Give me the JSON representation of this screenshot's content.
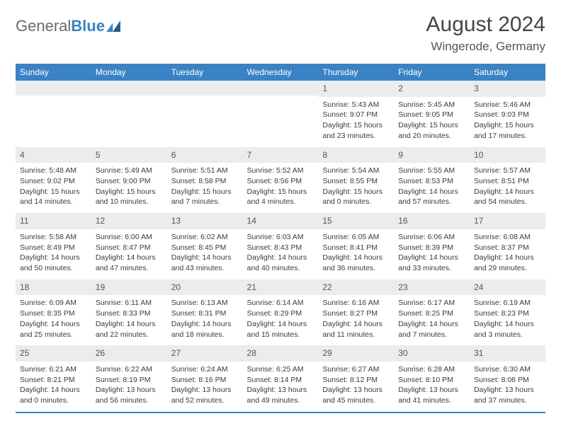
{
  "logo": {
    "word1": "General",
    "word2": "Blue"
  },
  "title": "August 2024",
  "location": "Wingerode, Germany",
  "colors": {
    "headerBar": "#3b82c4",
    "dayNumBg": "#ececec",
    "text": "#3b3b3b",
    "logoGrey": "#6a6a6a",
    "logoBlue": "#3b82c4"
  },
  "daysOfWeek": [
    "Sunday",
    "Monday",
    "Tuesday",
    "Wednesday",
    "Thursday",
    "Friday",
    "Saturday"
  ],
  "startOffset": 4,
  "days": [
    {
      "n": 1,
      "sunrise": "5:43 AM",
      "sunset": "9:07 PM",
      "daylight": "15 hours and 23 minutes."
    },
    {
      "n": 2,
      "sunrise": "5:45 AM",
      "sunset": "9:05 PM",
      "daylight": "15 hours and 20 minutes."
    },
    {
      "n": 3,
      "sunrise": "5:46 AM",
      "sunset": "9:03 PM",
      "daylight": "15 hours and 17 minutes."
    },
    {
      "n": 4,
      "sunrise": "5:48 AM",
      "sunset": "9:02 PM",
      "daylight": "15 hours and 14 minutes."
    },
    {
      "n": 5,
      "sunrise": "5:49 AM",
      "sunset": "9:00 PM",
      "daylight": "15 hours and 10 minutes."
    },
    {
      "n": 6,
      "sunrise": "5:51 AM",
      "sunset": "8:58 PM",
      "daylight": "15 hours and 7 minutes."
    },
    {
      "n": 7,
      "sunrise": "5:52 AM",
      "sunset": "8:56 PM",
      "daylight": "15 hours and 4 minutes."
    },
    {
      "n": 8,
      "sunrise": "5:54 AM",
      "sunset": "8:55 PM",
      "daylight": "15 hours and 0 minutes."
    },
    {
      "n": 9,
      "sunrise": "5:55 AM",
      "sunset": "8:53 PM",
      "daylight": "14 hours and 57 minutes."
    },
    {
      "n": 10,
      "sunrise": "5:57 AM",
      "sunset": "8:51 PM",
      "daylight": "14 hours and 54 minutes."
    },
    {
      "n": 11,
      "sunrise": "5:58 AM",
      "sunset": "8:49 PM",
      "daylight": "14 hours and 50 minutes."
    },
    {
      "n": 12,
      "sunrise": "6:00 AM",
      "sunset": "8:47 PM",
      "daylight": "14 hours and 47 minutes."
    },
    {
      "n": 13,
      "sunrise": "6:02 AM",
      "sunset": "8:45 PM",
      "daylight": "14 hours and 43 minutes."
    },
    {
      "n": 14,
      "sunrise": "6:03 AM",
      "sunset": "8:43 PM",
      "daylight": "14 hours and 40 minutes."
    },
    {
      "n": 15,
      "sunrise": "6:05 AM",
      "sunset": "8:41 PM",
      "daylight": "14 hours and 36 minutes."
    },
    {
      "n": 16,
      "sunrise": "6:06 AM",
      "sunset": "8:39 PM",
      "daylight": "14 hours and 33 minutes."
    },
    {
      "n": 17,
      "sunrise": "6:08 AM",
      "sunset": "8:37 PM",
      "daylight": "14 hours and 29 minutes."
    },
    {
      "n": 18,
      "sunrise": "6:09 AM",
      "sunset": "8:35 PM",
      "daylight": "14 hours and 25 minutes."
    },
    {
      "n": 19,
      "sunrise": "6:11 AM",
      "sunset": "8:33 PM",
      "daylight": "14 hours and 22 minutes."
    },
    {
      "n": 20,
      "sunrise": "6:13 AM",
      "sunset": "8:31 PM",
      "daylight": "14 hours and 18 minutes."
    },
    {
      "n": 21,
      "sunrise": "6:14 AM",
      "sunset": "8:29 PM",
      "daylight": "14 hours and 15 minutes."
    },
    {
      "n": 22,
      "sunrise": "6:16 AM",
      "sunset": "8:27 PM",
      "daylight": "14 hours and 11 minutes."
    },
    {
      "n": 23,
      "sunrise": "6:17 AM",
      "sunset": "8:25 PM",
      "daylight": "14 hours and 7 minutes."
    },
    {
      "n": 24,
      "sunrise": "6:19 AM",
      "sunset": "8:23 PM",
      "daylight": "14 hours and 3 minutes."
    },
    {
      "n": 25,
      "sunrise": "6:21 AM",
      "sunset": "8:21 PM",
      "daylight": "14 hours and 0 minutes."
    },
    {
      "n": 26,
      "sunrise": "6:22 AM",
      "sunset": "8:19 PM",
      "daylight": "13 hours and 56 minutes."
    },
    {
      "n": 27,
      "sunrise": "6:24 AM",
      "sunset": "8:16 PM",
      "daylight": "13 hours and 52 minutes."
    },
    {
      "n": 28,
      "sunrise": "6:25 AM",
      "sunset": "8:14 PM",
      "daylight": "13 hours and 49 minutes."
    },
    {
      "n": 29,
      "sunrise": "6:27 AM",
      "sunset": "8:12 PM",
      "daylight": "13 hours and 45 minutes."
    },
    {
      "n": 30,
      "sunrise": "6:28 AM",
      "sunset": "8:10 PM",
      "daylight": "13 hours and 41 minutes."
    },
    {
      "n": 31,
      "sunrise": "6:30 AM",
      "sunset": "8:08 PM",
      "daylight": "13 hours and 37 minutes."
    }
  ],
  "labels": {
    "sunrise": "Sunrise:",
    "sunset": "Sunset:",
    "daylight": "Daylight:"
  }
}
